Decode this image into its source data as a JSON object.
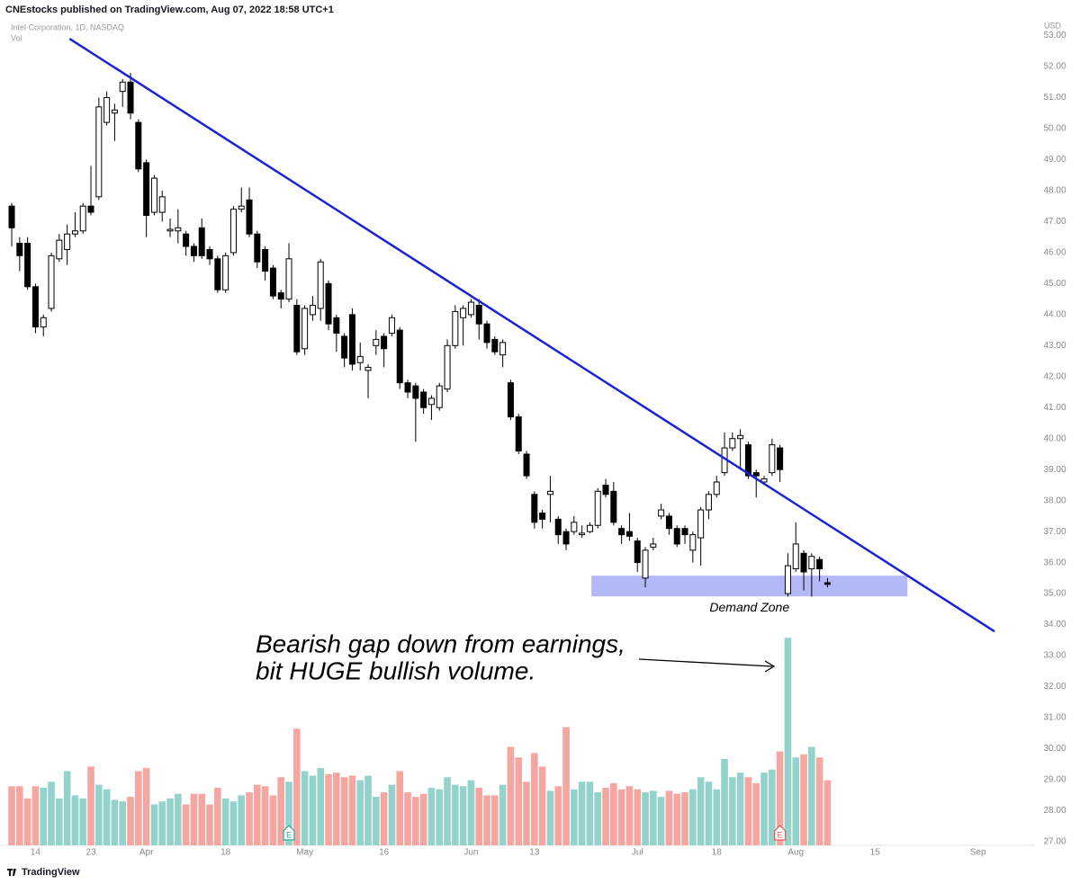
{
  "header": {
    "publisher": "CNEstocks published on TradingView.com, Aug 07, 2022 18:58 UTC+1",
    "brand": "TradingView"
  },
  "chart_data": {
    "type": "candlestick",
    "title": "Intel Corporation, 1D, NASDAQ",
    "volume_label": "Vol",
    "currency": "USD",
    "open": [
      47.5,
      46.3,
      46.3,
      44.9,
      43.6,
      44.2,
      45.8,
      46.1,
      46.6,
      46.7,
      47.5,
      47.8,
      50.2,
      50.5,
      51.2,
      51.5,
      50.2,
      48.9,
      47.3,
      47.3,
      46.7,
      46.7,
      46.6,
      46.2,
      46.8,
      46.1,
      45.8,
      44.8,
      46.0,
      47.4,
      47.7,
      46.6,
      46.1,
      45.5,
      44.7,
      44.5,
      44.3,
      42.9,
      44.0,
      44.2,
      45.0,
      43.9,
      43.3,
      44.0,
      42.45,
      42.2,
      43.0,
      43.3,
      43.4,
      43.5,
      41.8,
      41.7,
      41.5,
      41.1,
      41.0,
      41.6,
      43.0,
      43.9,
      44.0,
      44.3,
      43.7,
      43.2,
      42.7,
      41.8,
      40.7,
      39.5,
      38.2,
      37.6,
      38.2,
      37.4,
      37.0,
      37.0,
      36.9,
      37.0,
      37.2,
      38.5,
      38.3,
      37.1,
      37.0,
      36.7,
      35.5,
      36.5,
      37.5,
      37.5,
      37.1,
      37.1,
      36.4,
      36.8,
      37.7,
      38.2,
      38.9,
      39.7,
      40.0,
      39.8,
      38.9,
      38.6,
      38.9,
      39.7,
      35.0,
      35.8,
      36.3,
      35.8,
      36.1,
      35.35
    ],
    "high": [
      47.6,
      46.5,
      46.5,
      45.0,
      44.0,
      46.0,
      46.6,
      46.9,
      47.3,
      47.6,
      48.8,
      51.0,
      51.2,
      50.8,
      51.6,
      51.8,
      50.3,
      49.0,
      48.5,
      48.0,
      47.1,
      47.4,
      46.7,
      46.3,
      47.1,
      46.2,
      45.9,
      46.0,
      47.5,
      48.1,
      48.1,
      46.7,
      46.2,
      45.6,
      44.8,
      46.3,
      44.5,
      44.3,
      44.6,
      45.8,
      45.1,
      44.0,
      43.4,
      44.2,
      43.1,
      42.4,
      43.5,
      43.4,
      44.0,
      43.6,
      41.9,
      41.8,
      41.6,
      41.4,
      41.8,
      43.2,
      44.3,
      44.3,
      44.5,
      44.5,
      43.8,
      43.3,
      43.2,
      41.9,
      40.8,
      39.6,
      38.3,
      37.7,
      38.8,
      37.5,
      37.1,
      37.5,
      37.2,
      37.3,
      38.4,
      38.7,
      38.6,
      37.2,
      37.6,
      36.8,
      36.5,
      36.8,
      37.9,
      37.6,
      37.2,
      37.2,
      37.0,
      37.8,
      38.3,
      38.8,
      40.2,
      40.2,
      40.3,
      39.9,
      39.0,
      38.8,
      40.0,
      39.8,
      36.3,
      37.3,
      36.4,
      36.3,
      36.2,
      35.5
    ],
    "low": [
      46.2,
      45.4,
      44.8,
      43.4,
      43.3,
      44.1,
      45.7,
      45.6,
      46.5,
      46.6,
      47.2,
      47.7,
      50.1,
      49.6,
      50.7,
      50.3,
      48.6,
      46.5,
      47.2,
      47.0,
      46.5,
      46.3,
      45.9,
      45.7,
      45.8,
      45.6,
      44.7,
      44.7,
      45.9,
      47.3,
      46.5,
      45.5,
      45.1,
      44.5,
      44.2,
      44.4,
      42.7,
      42.7,
      43.8,
      43.8,
      43.5,
      42.8,
      42.3,
      42.2,
      42.2,
      41.3,
      42.7,
      42.3,
      43.3,
      41.6,
      41.3,
      39.9,
      40.8,
      40.6,
      40.9,
      41.5,
      42.9,
      43.0,
      43.9,
      43.2,
      42.9,
      42.7,
      42.3,
      40.6,
      39.5,
      38.7,
      37.1,
      37.1,
      37.3,
      36.6,
      36.4,
      36.9,
      36.8,
      36.95,
      37.1,
      38.1,
      37.2,
      36.6,
      36.7,
      35.7,
      35.2,
      36.4,
      37.4,
      36.9,
      36.5,
      36.6,
      36.0,
      35.9,
      37.4,
      38.1,
      38.8,
      39.6,
      39.0,
      38.7,
      38.1,
      38.5,
      38.8,
      38.6,
      34.9,
      35.7,
      35.1,
      34.9,
      35.4,
      35.2
    ],
    "close": [
      46.8,
      45.9,
      44.9,
      43.6,
      43.9,
      45.9,
      46.4,
      46.6,
      46.7,
      47.5,
      47.3,
      50.7,
      51.0,
      50.6,
      51.5,
      50.5,
      48.7,
      47.2,
      48.4,
      47.8,
      46.75,
      46.8,
      46.2,
      45.9,
      45.9,
      45.8,
      44.8,
      45.9,
      47.4,
      47.5,
      46.6,
      45.7,
      45.4,
      44.6,
      44.5,
      45.8,
      42.8,
      44.2,
      44.3,
      45.7,
      43.7,
      43.4,
      42.6,
      42.4,
      42.65,
      42.3,
      43.2,
      42.9,
      43.9,
      41.8,
      41.5,
      41.3,
      41.0,
      41.3,
      41.7,
      43.0,
      44.1,
      44.2,
      44.4,
      43.7,
      43.1,
      42.8,
      43.1,
      40.7,
      39.6,
      38.8,
      37.3,
      37.4,
      38.3,
      36.9,
      36.6,
      37.3,
      36.95,
      37.2,
      38.3,
      38.2,
      37.3,
      36.9,
      36.85,
      36.0,
      36.4,
      36.6,
      37.7,
      37.1,
      36.6,
      36.9,
      36.9,
      37.7,
      38.2,
      38.6,
      39.7,
      40.0,
      40.1,
      38.8,
      38.8,
      38.7,
      39.8,
      39.0,
      35.9,
      36.6,
      35.7,
      36.2,
      35.8,
      35.3
    ],
    "volume": [
      39,
      39,
      31,
      39,
      38,
      42,
      31,
      49,
      33,
      31,
      52,
      40,
      37,
      30,
      29,
      32,
      49,
      51,
      27,
      29,
      31,
      34,
      27,
      34,
      34,
      27,
      38,
      31,
      29,
      33,
      35,
      40,
      39,
      33,
      45,
      42,
      77,
      49,
      46,
      51,
      47,
      48,
      45,
      46,
      43,
      46,
      32,
      35,
      40,
      49,
      35,
      32,
      34,
      38,
      37,
      45,
      40,
      39,
      43,
      38,
      33,
      33,
      40,
      65,
      58,
      42,
      61,
      52,
      36,
      39,
      78,
      37,
      42,
      42,
      35,
      38,
      41,
      37,
      39,
      37,
      35,
      36,
      32,
      36,
      34,
      35,
      37,
      45,
      42,
      37,
      57,
      45,
      48,
      45,
      41,
      48,
      50,
      62,
      137,
      58,
      60,
      65,
      58,
      43
    ],
    "colors": {
      "up": "#ffffff",
      "down": "#000000",
      "border": "#000000",
      "volume_up": "#93d3cb",
      "volume_down": "#f5a6a1"
    },
    "xlim": [
      -1.48,
      129.2
    ],
    "xticks": [
      {
        "value": 3,
        "label": "14"
      },
      {
        "value": 10,
        "label": "23"
      },
      {
        "value": 17,
        "label": "Apr"
      },
      {
        "value": 27,
        "label": "18"
      },
      {
        "value": 37,
        "label": "May"
      },
      {
        "value": 47,
        "label": "16"
      },
      {
        "value": 58,
        "label": "Jun"
      },
      {
        "value": 66,
        "label": "13"
      },
      {
        "value": 79,
        "label": "Jul"
      },
      {
        "value": 89,
        "label": "18"
      },
      {
        "value": 99,
        "label": "Aug"
      },
      {
        "value": 109,
        "label": "15"
      },
      {
        "value": 122,
        "label": "Sep"
      }
    ],
    "ylim": [
      26.88,
      53.51
    ],
    "yticks": [
      {
        "value": 27,
        "label": "27.00"
      },
      {
        "value": 28,
        "label": "28.00"
      },
      {
        "value": 29,
        "label": "29.00"
      },
      {
        "value": 30,
        "label": "30.00"
      },
      {
        "value": 31,
        "label": "31.00"
      },
      {
        "value": 32,
        "label": "32.00"
      },
      {
        "value": 33,
        "label": "33.00"
      },
      {
        "value": 34,
        "label": "34.00"
      },
      {
        "value": 35,
        "label": "35.00"
      },
      {
        "value": 36,
        "label": "36.00"
      },
      {
        "value": 37,
        "label": "37.00"
      },
      {
        "value": 38,
        "label": "38.00"
      },
      {
        "value": 39,
        "label": "39.00"
      },
      {
        "value": 40,
        "label": "40.00"
      },
      {
        "value": 41,
        "label": "41.00"
      },
      {
        "value": 42,
        "label": "42.00"
      },
      {
        "value": 43,
        "label": "43.00"
      },
      {
        "value": 44,
        "label": "44.00"
      },
      {
        "value": 45,
        "label": "45.00"
      },
      {
        "value": 46,
        "label": "46.00"
      },
      {
        "value": 47,
        "label": "47.00"
      },
      {
        "value": 48,
        "label": "48.00"
      },
      {
        "value": 49,
        "label": "49.00"
      },
      {
        "value": 50,
        "label": "50.00"
      },
      {
        "value": 51,
        "label": "51.00"
      },
      {
        "value": 52,
        "label": "52.00"
      },
      {
        "value": 53,
        "label": "53.00"
      }
    ],
    "volume_ylim": [
      0,
      545
    ],
    "trendline": {
      "start": [
        7.3,
        52.9
      ],
      "end": [
        124.1,
        33.78
      ],
      "color": "#1b22d2"
    },
    "zone": {
      "x": [
        73.2,
        113.1
      ],
      "y": [
        34.91,
        35.58
      ],
      "color": "#b3b8f7",
      "label": "Demand Zone"
    },
    "events": [
      {
        "index": 35,
        "label": "E",
        "color": "#26a69a"
      },
      {
        "index": 97,
        "label": "E",
        "color": "#ef5350"
      }
    ],
    "annotation": {
      "lines": [
        "Bearish gap down from earnings,",
        "bit HUGE bullish volume."
      ]
    }
  }
}
